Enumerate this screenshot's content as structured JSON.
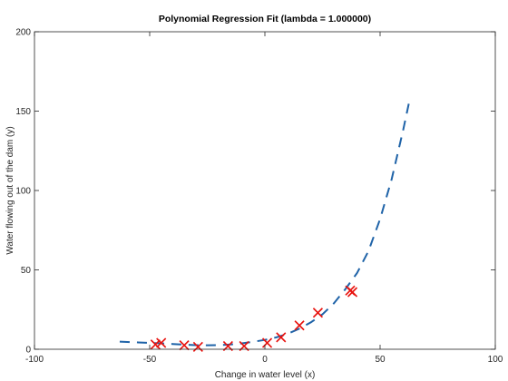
{
  "chart_data": {
    "type": "scatter",
    "title": "Polynomial Regression Fit (lambda = 1.000000)",
    "xlabel": "Change in water level (x)",
    "ylabel": "Water flowing out of the dam (y)",
    "xlim": [
      -100,
      100
    ],
    "ylim": [
      0,
      200
    ],
    "xticks": [
      -100,
      -50,
      0,
      50,
      100
    ],
    "yticks": [
      0,
      50,
      100,
      150,
      200
    ],
    "grid": false,
    "series": [
      {
        "kind": "points",
        "marker": "x",
        "color": "#e8120e",
        "x": [
          -47.5,
          -45,
          -35,
          -29,
          -16,
          -9,
          1,
          7,
          15,
          23,
          37,
          38
        ],
        "y": [
          3,
          4,
          2.5,
          1.5,
          2,
          2,
          4,
          7.5,
          15,
          23,
          37,
          36
        ]
      },
      {
        "kind": "fit-line",
        "style": "dashed",
        "color": "#1f63a8",
        "x": [
          -63,
          -55,
          -50,
          -45,
          -40,
          -35,
          -30,
          -25,
          -20,
          -15,
          -10,
          -5,
          0,
          5,
          10,
          15,
          20,
          25,
          30,
          35,
          40,
          45,
          50,
          55,
          60,
          62.5
        ],
        "y": [
          4.8,
          4.3,
          4,
          3.7,
          3.3,
          2.9,
          2.6,
          2.5,
          2.6,
          3,
          3.7,
          4.7,
          5.9,
          7.5,
          9.8,
          13,
          17,
          22,
          29,
          38,
          48,
          62,
          82,
          107,
          138,
          155
        ]
      }
    ]
  }
}
